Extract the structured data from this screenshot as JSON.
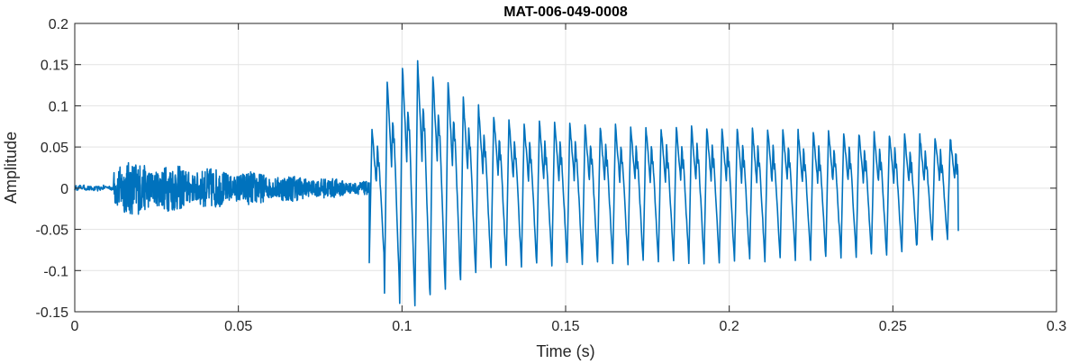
{
  "chart_data": {
    "type": "line",
    "title": "MAT-006-049-0008",
    "xlabel": "Time (s)",
    "ylabel": "Amplitude",
    "xlim": [
      0,
      0.3
    ],
    "ylim": [
      -0.15,
      0.2
    ],
    "xticks": [
      0,
      0.05,
      0.1,
      0.15,
      0.2,
      0.25,
      0.3
    ],
    "xtick_labels": [
      "0",
      "0.05",
      "0.1",
      "0.15",
      "0.2",
      "0.25",
      "0.3"
    ],
    "yticks": [
      -0.15,
      -0.1,
      -0.05,
      0,
      0.05,
      0.1,
      0.15,
      0.2
    ],
    "ytick_labels": [
      "-0.15",
      "-0.1",
      "-0.05",
      "0",
      "0.05",
      "0.1",
      "0.15",
      "0.2"
    ],
    "grid": true,
    "line_color": "#0072BD",
    "series": [
      {
        "name": "",
        "segments": [
          {
            "kind": "quiet",
            "t_start": 0,
            "t_end": 0.012,
            "amplitude": 0.003
          },
          {
            "kind": "noise",
            "t_start": 0.012,
            "t_end": 0.09,
            "amplitude_start": 0.035,
            "amplitude_end": 0.008
          },
          {
            "kind": "voiced",
            "t_start": 0.09,
            "t_end": 0.27,
            "period": 0.00465
          }
        ],
        "voiced_peaks": [
          0.07,
          0.13,
          0.15,
          0.155,
          0.14,
          0.13,
          0.11,
          0.1,
          0.09,
          0.085,
          0.08,
          0.082,
          0.08,
          0.08,
          0.078,
          0.077,
          0.076,
          0.075,
          0.075,
          0.074,
          0.075,
          0.076,
          0.075,
          0.074,
          0.073,
          0.072,
          0.072,
          0.071,
          0.07,
          0.07,
          0.07,
          0.069,
          0.068,
          0.067,
          0.066,
          0.065,
          0.064,
          0.063,
          0.062,
          0.06
        ],
        "voiced_troughs": [
          -0.09,
          -0.13,
          -0.14,
          -0.145,
          -0.13,
          -0.12,
          -0.11,
          -0.1,
          -0.095,
          -0.095,
          -0.093,
          -0.093,
          -0.092,
          -0.092,
          -0.093,
          -0.092,
          -0.091,
          -0.09,
          -0.09,
          -0.09,
          -0.09,
          -0.089,
          -0.09,
          -0.09,
          -0.089,
          -0.088,
          -0.087,
          -0.086,
          -0.085,
          -0.085,
          -0.084,
          -0.083,
          -0.082,
          -0.081,
          -0.08,
          -0.078,
          -0.07,
          -0.065,
          -0.06,
          -0.055
        ],
        "end_value": -0.052
      }
    ]
  }
}
